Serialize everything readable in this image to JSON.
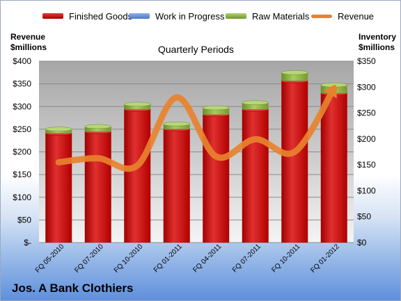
{
  "chart_data": {
    "type": "bar",
    "title": "Jos. A Bank Clothiers",
    "subtitle": "Quarterly Periods",
    "categories": [
      "FQ 05-2010",
      "FQ 07-2010",
      "FQ 10-2010",
      "FQ 01-2011",
      "FQ 04-2011",
      "FQ 07-2011",
      "FQ 10-2011",
      "FQ 01-2012"
    ],
    "series": [
      {
        "name": "Finished Goods",
        "chart": "stacked-bar",
        "axis": "right",
        "color": "#c00000",
        "values": [
          211,
          214,
          257,
          219,
          247,
          257,
          312,
          288
        ]
      },
      {
        "name": "Work in Progress",
        "chart": "stacked-bar",
        "axis": "right",
        "color": "#5b8ad6",
        "values": [
          0,
          0,
          0,
          0,
          0,
          0,
          0,
          0
        ]
      },
      {
        "name": "Raw Materials",
        "chart": "stacked-bar",
        "axis": "right",
        "color": "#8bb040",
        "values": [
          8,
          10,
          10,
          10,
          13,
          13,
          16,
          16
        ]
      },
      {
        "name": "Revenue",
        "chart": "line",
        "axis": "left",
        "color": "#e8822e",
        "values": [
          177,
          186,
          170,
          320,
          190,
          228,
          200,
          340
        ]
      }
    ],
    "ylabel_left": [
      "Revenue",
      "$millions"
    ],
    "ylabel_right": [
      "Inventory",
      "$millions"
    ],
    "ylim_left": [
      0,
      400
    ],
    "ylim_right": [
      0,
      350
    ],
    "yticks_left": [
      "$-",
      "$50",
      "$100",
      "$150",
      "$200",
      "$250",
      "$300",
      "$350",
      "$400"
    ],
    "yticks_right": [
      "$0",
      "$50",
      "$100",
      "$150",
      "$200",
      "$250",
      "$300",
      "$350"
    ],
    "grid": true,
    "legend_position": "top"
  }
}
